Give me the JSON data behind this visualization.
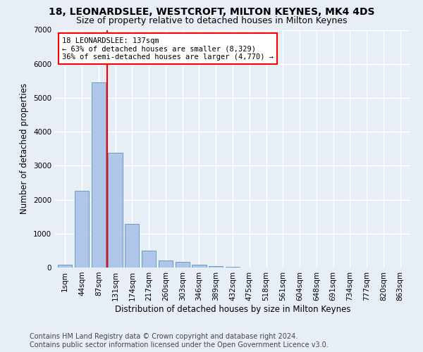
{
  "title": "18, LEONARDSLEE, WESTCROFT, MILTON KEYNES, MK4 4DS",
  "subtitle": "Size of property relative to detached houses in Milton Keynes",
  "xlabel": "Distribution of detached houses by size in Milton Keynes",
  "ylabel": "Number of detached properties",
  "footer_line1": "Contains HM Land Registry data © Crown copyright and database right 2024.",
  "footer_line2": "Contains public sector information licensed under the Open Government Licence v3.0.",
  "bar_labels": [
    "1sqm",
    "44sqm",
    "87sqm",
    "131sqm",
    "174sqm",
    "217sqm",
    "260sqm",
    "303sqm",
    "346sqm",
    "389sqm",
    "432sqm",
    "475sqm",
    "518sqm",
    "561sqm",
    "604sqm",
    "648sqm",
    "691sqm",
    "734sqm",
    "777sqm",
    "820sqm",
    "863sqm"
  ],
  "bar_values": [
    80,
    2270,
    5460,
    3380,
    1290,
    490,
    200,
    165,
    90,
    50,
    30,
    0,
    0,
    0,
    0,
    0,
    0,
    0,
    0,
    0,
    0
  ],
  "bar_color": "#aec6e8",
  "bar_edge_color": "#5a8fc0",
  "vline_x": 2.5,
  "vline_color": "red",
  "annotation_line1": "18 LEONARDSLEE: 137sqm",
  "annotation_line2": "← 63% of detached houses are smaller (8,329)",
  "annotation_line3": "36% of semi-detached houses are larger (4,770) →",
  "annotation_box_color": "white",
  "annotation_border_color": "red",
  "ylim": [
    0,
    7000
  ],
  "yticks": [
    0,
    1000,
    2000,
    3000,
    4000,
    5000,
    6000,
    7000
  ],
  "bg_color": "#e8eef5",
  "plot_bg_color": "#e8eef5",
  "grid_color": "white",
  "title_fontsize": 10,
  "subtitle_fontsize": 9,
  "xlabel_fontsize": 8.5,
  "ylabel_fontsize": 8.5,
  "tick_fontsize": 7.5,
  "annotation_fontsize": 7.5,
  "footer_fontsize": 7
}
